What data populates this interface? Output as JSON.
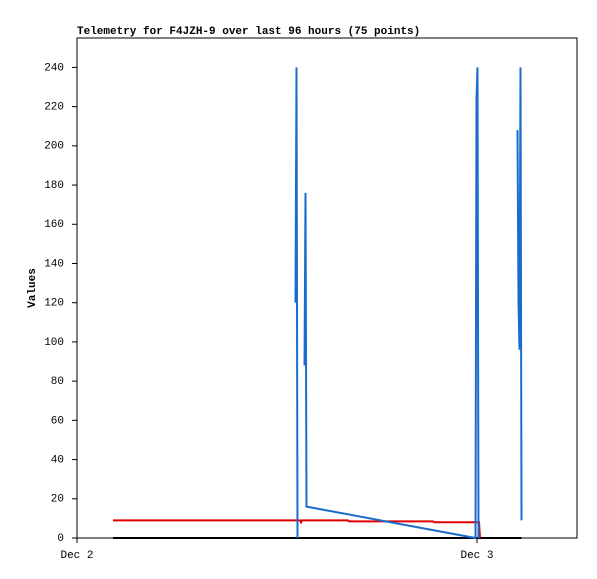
{
  "chart_data": {
    "type": "line",
    "title": "Telemetry for F4JZH-9 over last 96 hours (75 points)",
    "y_label": "Values",
    "xlim": [
      0,
      30
    ],
    "xticks": [
      {
        "value": 0,
        "label": "Dec 2"
      },
      {
        "value": 24,
        "label": "Dec 3"
      }
    ],
    "ylim": [
      0,
      255
    ],
    "yticks": [
      0,
      20,
      40,
      60,
      80,
      100,
      120,
      140,
      160,
      180,
      200,
      220,
      240
    ],
    "grid": false,
    "series": [
      {
        "color": "#000000",
        "x": [
          2.16,
          26.67
        ],
        "values": [
          0,
          0
        ]
      },
      {
        "color": "#e00000",
        "x": [
          2.16,
          13.38,
          13.44,
          13.5,
          16.26,
          16.32,
          21.36,
          21.42,
          24.12,
          24.18
        ],
        "values": [
          9,
          9,
          8,
          9,
          9,
          8.5,
          8.5,
          8,
          8,
          0
        ]
      },
      {
        "color": "#1a6ccc",
        "x": [
          13.11,
          13.17,
          13.23,
          13.4,
          13.65,
          13.71,
          13.77,
          23.91,
          23.97,
          24.03,
          24.09,
          25,
          26.43,
          26.49,
          26.55,
          26.61,
          26.67
        ],
        "values": [
          120,
          240,
          0,
          null,
          88,
          176,
          16,
          0,
          224,
          240,
          0,
          null,
          208,
          120,
          96,
          240,
          9
        ]
      }
    ]
  }
}
